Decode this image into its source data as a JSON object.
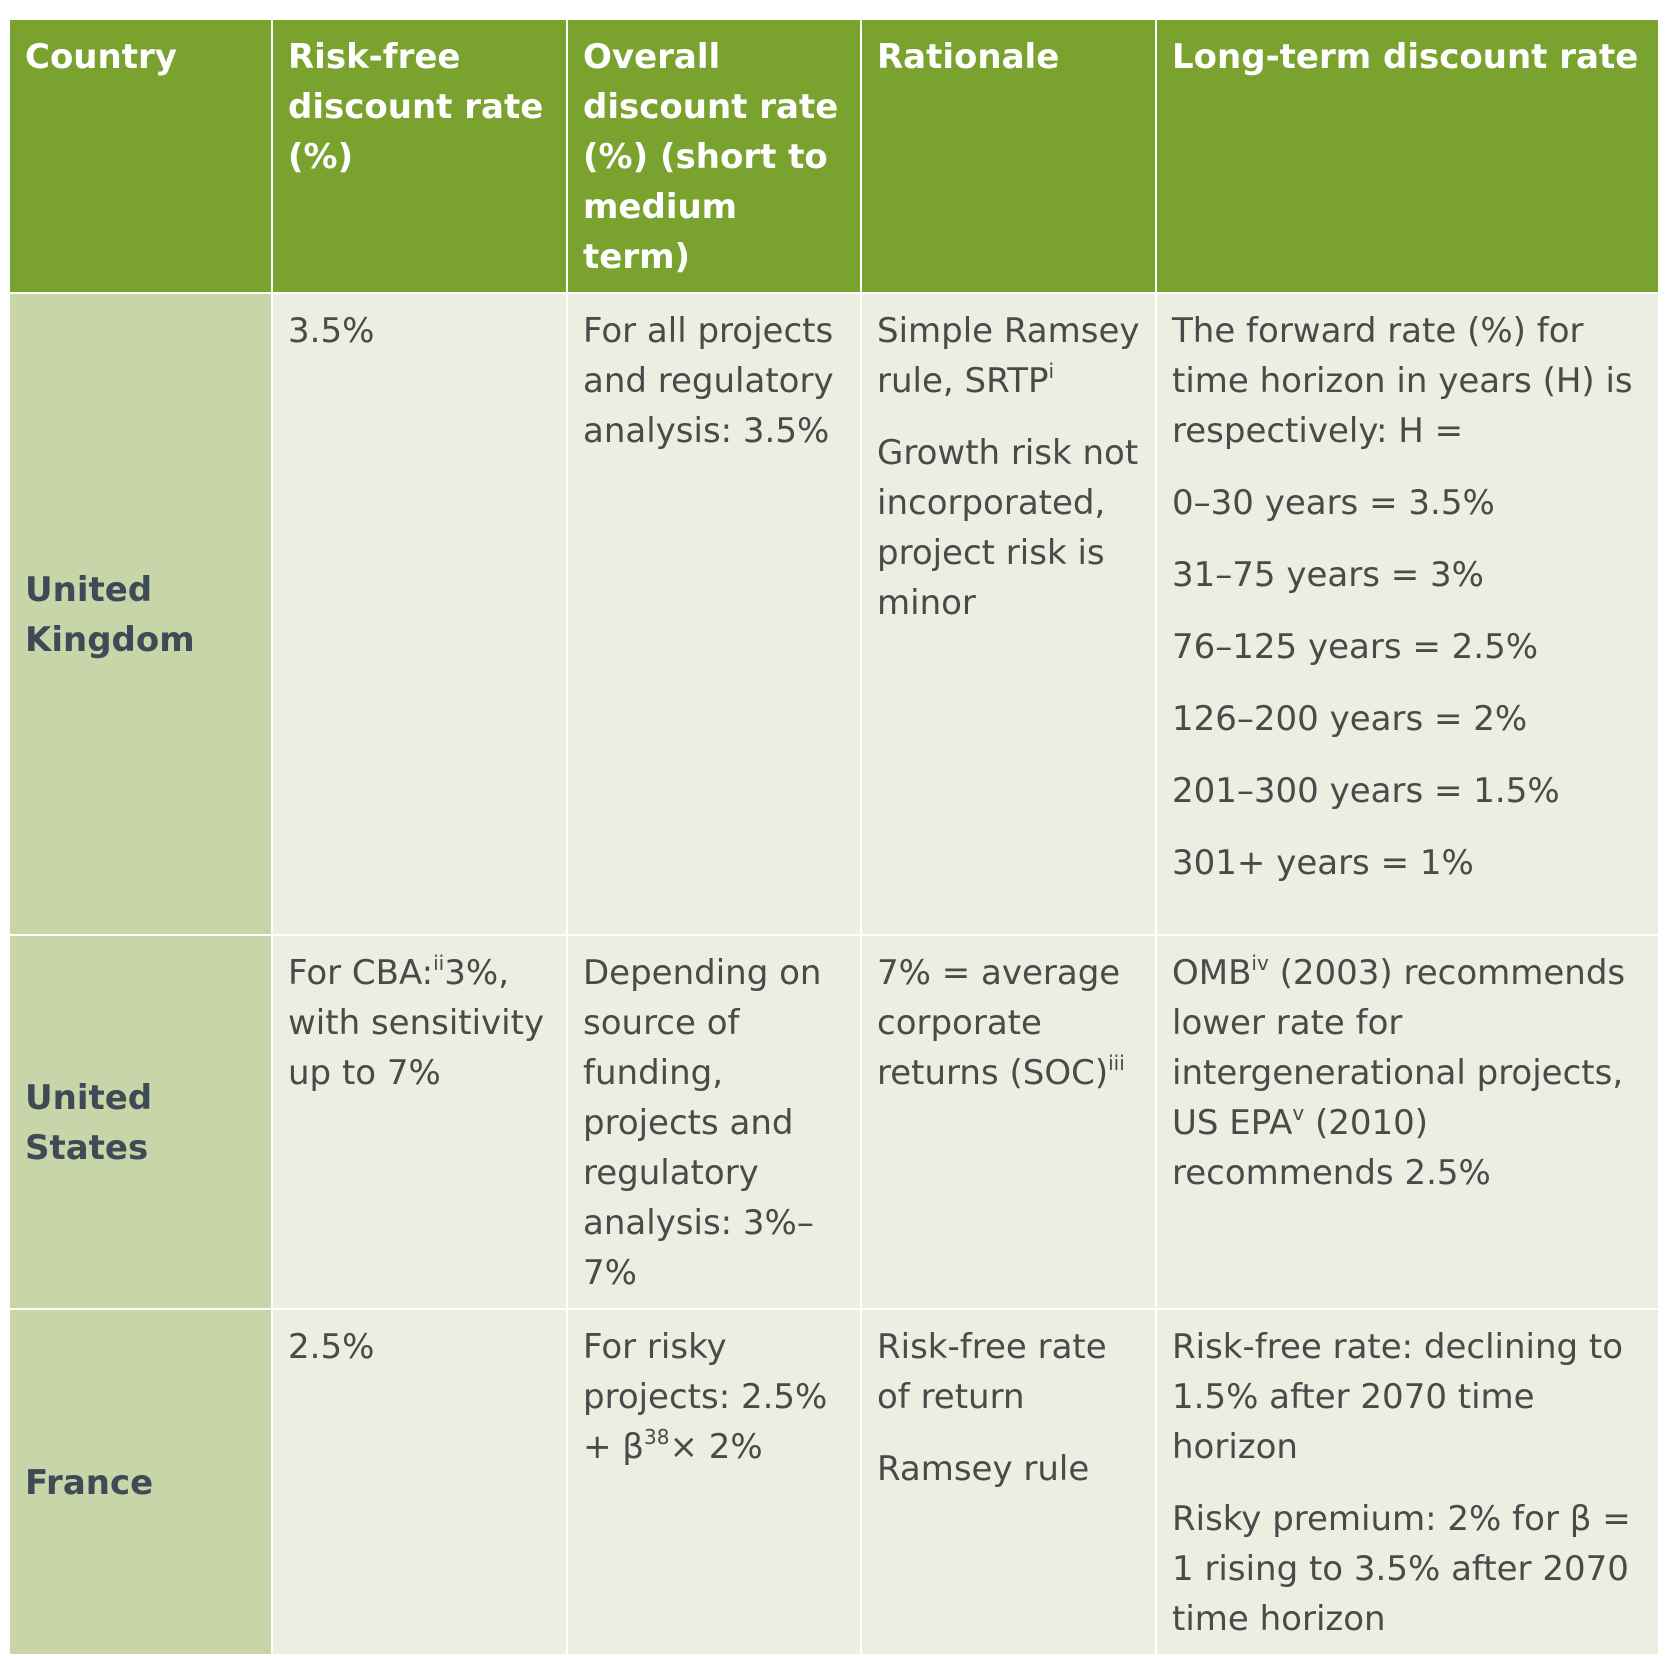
{
  "table": {
    "headers": [
      "Country",
      "Risk-free discount rate (%)",
      "Overall discount rate (%) (short to medium term)",
      "Rationale",
      "Long-term discount rate"
    ],
    "uk": {
      "country": "United Kingdom",
      "risk_free": "3.5%",
      "overall": "For all projects and regulatory analysis: 3.5%",
      "rationale_1": "Simple Ramsey rule, SRTP",
      "rationale_1_sup": "i",
      "rationale_2": "Growth risk not incorporated, project risk is minor",
      "longterm_intro": "The forward rate (%) for time horizon in years (H) is respectively: H =",
      "longterm_lines": [
        "0–30 years = 3.5%",
        "31–75 years = 3%",
        "76–125 years = 2.5%",
        "126–200 years = 2%",
        "201–300 years = 1.5%",
        "301+ years = 1%"
      ]
    },
    "us": {
      "country": "United States",
      "risk_free_pre": "For CBA:",
      "risk_free_sup": "ii",
      "risk_free_post": "3%, with sensitivity up to 7%",
      "overall": "Depending on source of funding, projects and regulatory analysis: 3%–7%",
      "rationale_pre": "7% = average corporate returns (SOC)",
      "rationale_sup": "iii",
      "longterm_pre": "OMB",
      "longterm_sup1": "iv",
      "longterm_mid": " (2003) recommends lower rate for intergenerational projects, US EPA",
      "longterm_sup2": "v",
      "longterm_post": " (2010) recommends 2.5%"
    },
    "fr": {
      "country": "France",
      "risk_free": "2.5%",
      "overall_pre": "For risky projects: 2.5% + β",
      "overall_sup": "38",
      "overall_post": "× 2%",
      "rationale_1": "Risk-free rate of return",
      "rationale_2": "Ramsey rule",
      "longterm_1": "Risk-free rate: declining to 1.5% after 2070 time horizon",
      "longterm_2": "Risky premium: 2% for β = 1 rising to 3.5% after 2070 time horizon"
    }
  }
}
